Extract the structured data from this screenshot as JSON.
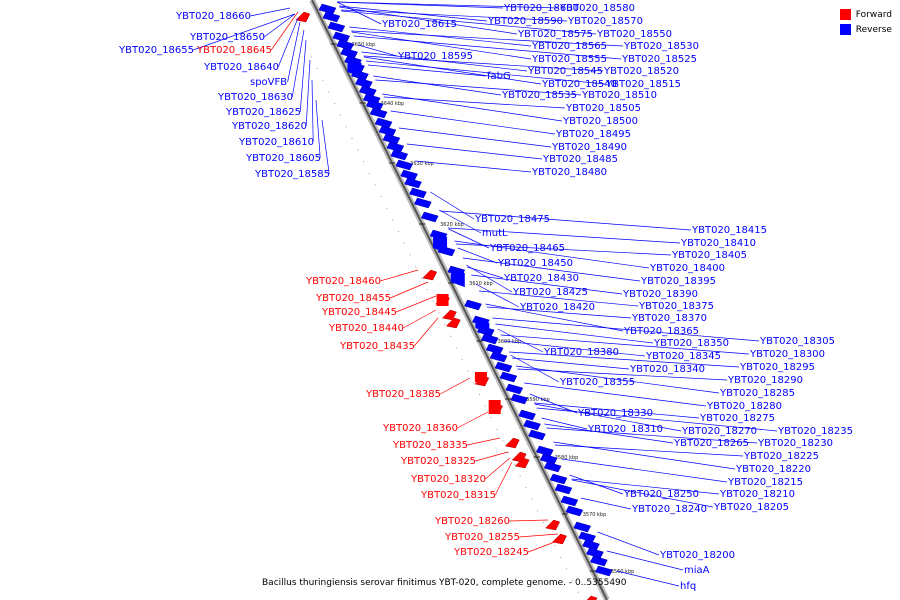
{
  "legend": {
    "forward_label": "Forward",
    "reverse_label": "Reverse",
    "forward_color": "#ff0000",
    "reverse_color": "#0000ff"
  },
  "caption": "Bacillus thuringiensis serovar finitimus YBT-020, complete genome. - 0..5355490",
  "ticks": [
    "3650 kbp",
    "3640 kbp",
    "3630 kbp",
    "3620 kbp",
    "3610 kbp",
    "3600 kbp",
    "3590 kbp",
    "3580 kbp",
    "3570 kbp",
    "3560 kbp"
  ],
  "labels_left": [
    {
      "text": "YBT020_18660",
      "strand": "reverse"
    },
    {
      "text": "YBT020_18650",
      "strand": "reverse"
    },
    {
      "text": "YBT020_18655",
      "strand": "reverse"
    },
    {
      "text": "YBT020_18645",
      "strand": "forward"
    },
    {
      "text": "YBT020_18640",
      "strand": "reverse"
    },
    {
      "text": "spoVFB",
      "strand": "reverse"
    },
    {
      "text": "YBT020_18630",
      "strand": "reverse"
    },
    {
      "text": "YBT020_18625",
      "strand": "reverse"
    },
    {
      "text": "YBT020_18620",
      "strand": "reverse"
    },
    {
      "text": "YBT020_18610",
      "strand": "reverse"
    },
    {
      "text": "YBT020_18605",
      "strand": "reverse"
    },
    {
      "text": "YBT020_18585",
      "strand": "reverse"
    },
    {
      "text": "YBT020_18460",
      "strand": "forward"
    },
    {
      "text": "YBT020_18455",
      "strand": "forward"
    },
    {
      "text": "YBT020_18445",
      "strand": "forward"
    },
    {
      "text": "YBT020_18440",
      "strand": "forward"
    },
    {
      "text": "YBT020_18435",
      "strand": "forward"
    },
    {
      "text": "YBT020_18385",
      "strand": "forward"
    },
    {
      "text": "YBT020_18360",
      "strand": "forward"
    },
    {
      "text": "YBT020_18335",
      "strand": "forward"
    },
    {
      "text": "YBT020_18325",
      "strand": "forward"
    },
    {
      "text": "YBT020_18320",
      "strand": "forward"
    },
    {
      "text": "YBT020_18315",
      "strand": "forward"
    },
    {
      "text": "YBT020_18260",
      "strand": "forward"
    },
    {
      "text": "YBT020_18255",
      "strand": "forward"
    },
    {
      "text": "YBT020_18245",
      "strand": "forward"
    }
  ],
  "labels_right": [
    {
      "text": "YBT020_18615"
    },
    {
      "text": "YBT020_18600"
    },
    {
      "text": "YBT020_18580"
    },
    {
      "text": "YBT020_18590"
    },
    {
      "text": "YBT020_18570"
    },
    {
      "text": "YBT020_18575"
    },
    {
      "text": "YBT020_18550"
    },
    {
      "text": "YBT020_18565"
    },
    {
      "text": "YBT020_18530"
    },
    {
      "text": "YBT020_18595"
    },
    {
      "text": "YBT020_18555"
    },
    {
      "text": "YBT020_18525"
    },
    {
      "text": "YBT020_18545"
    },
    {
      "text": "YBT020_18520"
    },
    {
      "text": "fabG"
    },
    {
      "text": "YBT020_18540"
    },
    {
      "text": "YBT020_18515"
    },
    {
      "text": "YBT020_18535"
    },
    {
      "text": "YBT020_18510"
    },
    {
      "text": "YBT020_18505"
    },
    {
      "text": "YBT020_18500"
    },
    {
      "text": "YBT020_18495"
    },
    {
      "text": "YBT020_18490"
    },
    {
      "text": "YBT020_18485"
    },
    {
      "text": "YBT020_18480"
    },
    {
      "text": "YBT020_18475"
    },
    {
      "text": "mutL"
    },
    {
      "text": "YBT020_18465"
    },
    {
      "text": "YBT020_18450"
    },
    {
      "text": "YBT020_18430"
    },
    {
      "text": "YBT020_18425"
    },
    {
      "text": "YBT020_18420"
    },
    {
      "text": "YBT020_18415"
    },
    {
      "text": "YBT020_18410"
    },
    {
      "text": "YBT020_18405"
    },
    {
      "text": "YBT020_18400"
    },
    {
      "text": "YBT020_18395"
    },
    {
      "text": "YBT020_18390"
    },
    {
      "text": "YBT020_18375"
    },
    {
      "text": "YBT020_18370"
    },
    {
      "text": "YBT020_18365"
    },
    {
      "text": "YBT020_18380"
    },
    {
      "text": "YBT020_18350"
    },
    {
      "text": "YBT020_18345"
    },
    {
      "text": "YBT020_18340"
    },
    {
      "text": "YBT020_18355"
    },
    {
      "text": "YBT020_18305"
    },
    {
      "text": "YBT020_18300"
    },
    {
      "text": "YBT020_18295"
    },
    {
      "text": "YBT020_18290"
    },
    {
      "text": "YBT020_18285"
    },
    {
      "text": "YBT020_18280"
    },
    {
      "text": "YBT020_18330"
    },
    {
      "text": "YBT020_18275"
    },
    {
      "text": "YBT020_18310"
    },
    {
      "text": "YBT020_18270"
    },
    {
      "text": "YBT020_18235"
    },
    {
      "text": "YBT020_18265"
    },
    {
      "text": "YBT020_18230"
    },
    {
      "text": "YBT020_18225"
    },
    {
      "text": "YBT020_18220"
    },
    {
      "text": "YBT020_18215"
    },
    {
      "text": "YBT020_18250"
    },
    {
      "text": "YBT020_18210"
    },
    {
      "text": "YBT020_18240"
    },
    {
      "text": "YBT020_18205"
    },
    {
      "text": "YBT020_18200"
    },
    {
      "text": "miaA"
    },
    {
      "text": "hfq"
    }
  ]
}
